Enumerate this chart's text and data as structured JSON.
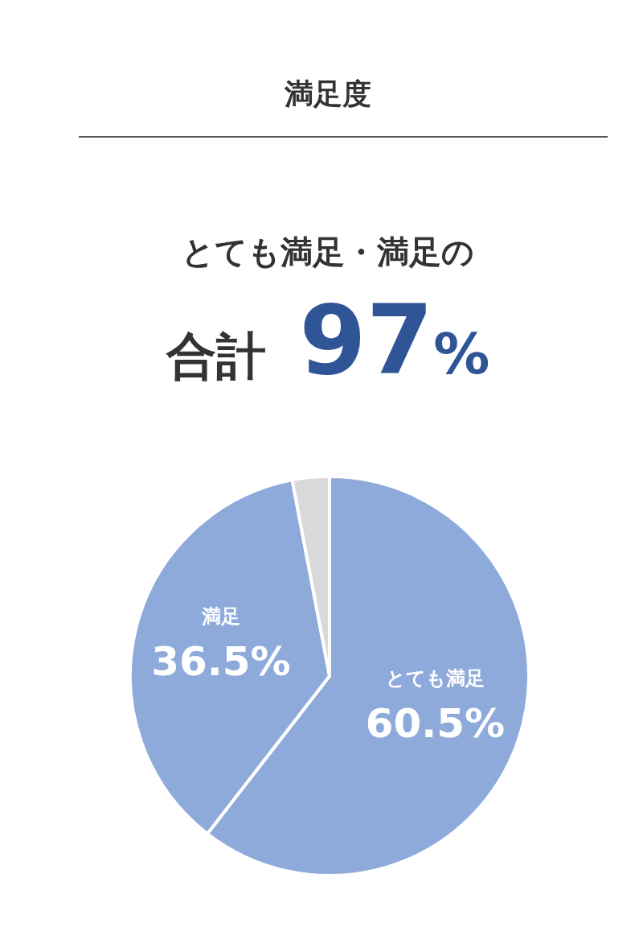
{
  "chart_data": {
    "type": "pie",
    "title": "満足度",
    "annotations": [
      "とても満足・満足の",
      "合計 97%"
    ],
    "categories": [
      "とても満足",
      "満足",
      null
    ],
    "values": [
      60.5,
      36.5,
      3
    ],
    "colors": [
      "#8eaadb",
      "#8eaadb",
      "#d9d9d9"
    ],
    "value_labels": [
      "60.5%",
      "36.5%",
      null
    ],
    "legend": false
  }
}
